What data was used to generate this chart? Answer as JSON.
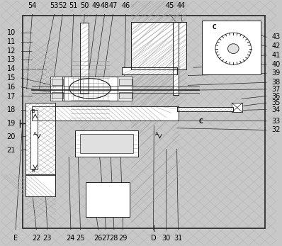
{
  "bg_color": "#c8c8c8",
  "line_color": "#222222",
  "white": "#ffffff",
  "light_gray": "#e0e0e0",
  "hatch_color": "#888888",
  "fig_width": 3.98,
  "fig_height": 3.47,
  "border": [
    0.08,
    0.07,
    0.88,
    0.87
  ],
  "top_labels": [
    [
      "54",
      0.115
    ],
    [
      "53",
      0.195
    ],
    [
      "52",
      0.225
    ],
    [
      "51",
      0.265
    ],
    [
      "50",
      0.305
    ],
    [
      "49",
      0.348
    ],
    [
      "48",
      0.378
    ],
    [
      "47",
      0.408
    ],
    [
      "46",
      0.455
    ],
    [
      "45",
      0.615
    ],
    [
      "44",
      0.655
    ]
  ],
  "left_labels": [
    [
      "10",
      0.87
    ],
    [
      "11",
      0.833
    ],
    [
      "12",
      0.796
    ],
    [
      "13",
      0.759
    ],
    [
      "14",
      0.722
    ],
    [
      "15",
      0.685
    ],
    [
      "16",
      0.648
    ],
    [
      "17",
      0.611
    ],
    [
      "18",
      0.556
    ],
    [
      "19",
      0.5
    ],
    [
      "20",
      0.444
    ],
    [
      "21",
      0.389
    ]
  ],
  "right_labels": [
    [
      "43",
      0.852
    ],
    [
      "42",
      0.815
    ],
    [
      "41",
      0.778
    ],
    [
      "40",
      0.741
    ],
    [
      "39",
      0.704
    ],
    [
      "38",
      0.667
    ],
    [
      "37",
      0.639
    ],
    [
      "36",
      0.611
    ],
    [
      "35",
      0.583
    ],
    [
      "34",
      0.556
    ],
    [
      "33",
      0.509
    ],
    [
      "32",
      0.472
    ]
  ],
  "bottom_labels": [
    [
      "E",
      0.055
    ],
    [
      "22",
      0.13
    ],
    [
      "23",
      0.17
    ],
    [
      "24",
      0.255
    ],
    [
      "25",
      0.29
    ],
    [
      "26",
      0.355
    ],
    [
      "27",
      0.383
    ],
    [
      "28",
      0.412
    ],
    [
      "29",
      0.445
    ],
    [
      "D",
      0.555
    ],
    [
      "30",
      0.6
    ],
    [
      "31",
      0.645
    ]
  ]
}
